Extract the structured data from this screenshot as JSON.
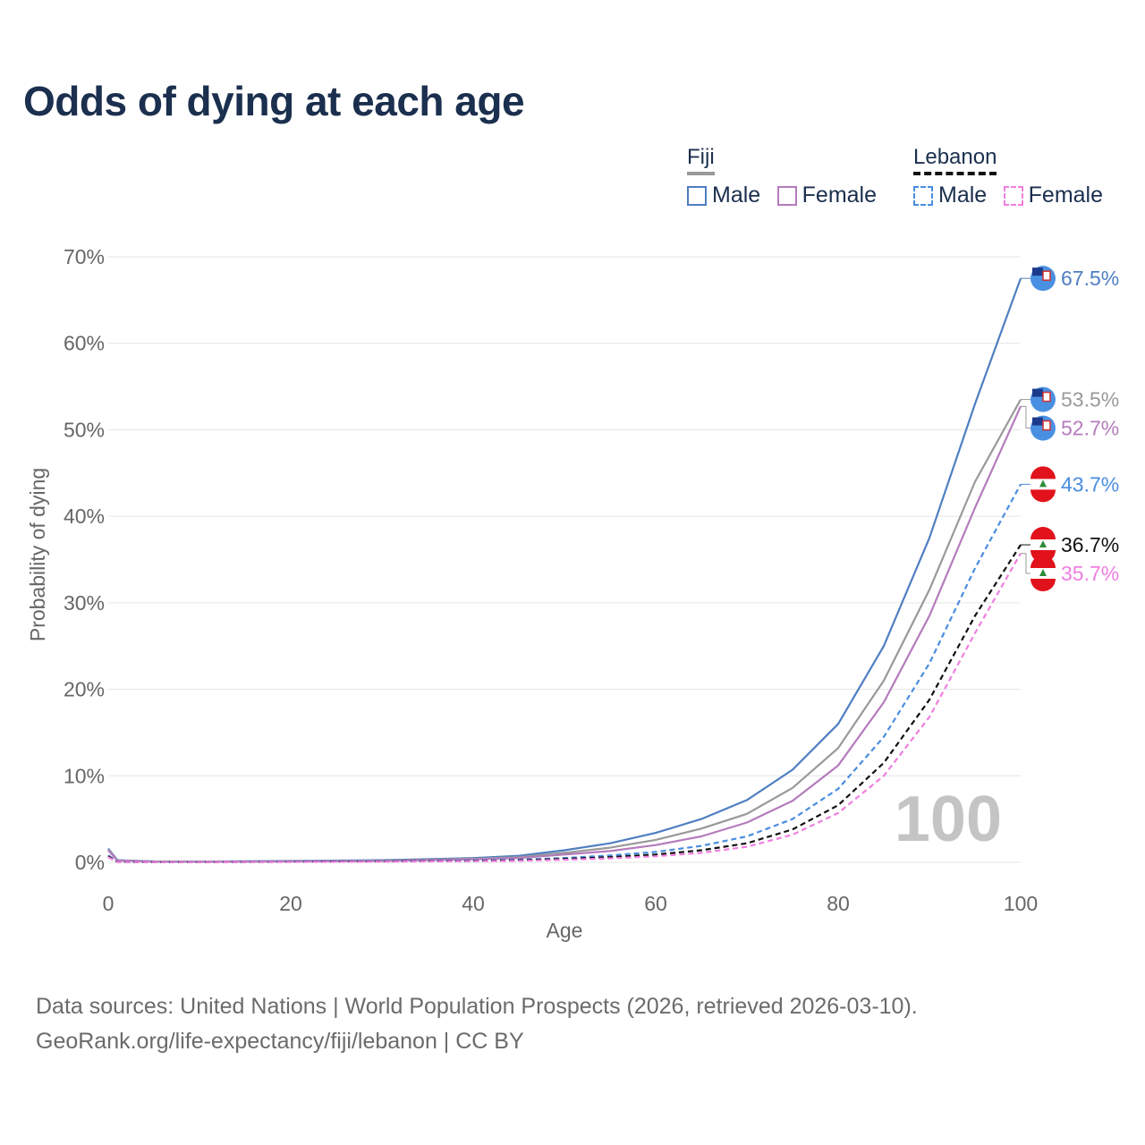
{
  "title": "Odds of dying at each age",
  "legend": {
    "groups": [
      {
        "name": "Fiji",
        "line_color": "#999999",
        "dashed": false,
        "items": [
          {
            "label": "Male",
            "color": "#4f7ec2",
            "dashed": false
          },
          {
            "label": "Female",
            "color": "#b57bbd",
            "dashed": false
          }
        ]
      },
      {
        "name": "Lebanon",
        "line_color": "#111111",
        "dashed": true,
        "items": [
          {
            "label": "Male",
            "color": "#4a8de0",
            "dashed": true
          },
          {
            "label": "Female",
            "color": "#f07ee0",
            "dashed": true
          }
        ]
      }
    ]
  },
  "chart_data": {
    "type": "line",
    "title": "Odds of dying at each age",
    "xlabel": "Age",
    "ylabel": "Probability of dying",
    "xlim": [
      0,
      100
    ],
    "ylim": [
      0,
      70
    ],
    "xticks": [
      0,
      20,
      40,
      60,
      80,
      100
    ],
    "yticks": [
      0,
      10,
      20,
      30,
      40,
      50,
      60,
      70
    ],
    "ytick_labels": [
      "0%",
      "10%",
      "20%",
      "30%",
      "40%",
      "50%",
      "60%",
      "70%"
    ],
    "watermark": "100",
    "x": [
      0,
      1,
      5,
      10,
      20,
      30,
      40,
      45,
      50,
      55,
      60,
      65,
      70,
      75,
      80,
      85,
      90,
      95,
      100
    ],
    "series": [
      {
        "name": "Fiji Male",
        "country": "Fiji",
        "sex": "Male",
        "color": "#4f7ec2",
        "dashed": false,
        "values": [
          1.6,
          0.25,
          0.1,
          0.08,
          0.15,
          0.25,
          0.5,
          0.75,
          1.4,
          2.2,
          3.4,
          5.0,
          7.2,
          10.7,
          16.0,
          25.0,
          37.5,
          53.0,
          67.5
        ],
        "end_label": "67.5%"
      },
      {
        "name": "Fiji total",
        "country": "Fiji",
        "sex": "All",
        "color": "#999999",
        "dashed": false,
        "values": [
          1.5,
          0.22,
          0.09,
          0.07,
          0.12,
          0.2,
          0.4,
          0.6,
          1.1,
          1.7,
          2.6,
          3.9,
          5.6,
          8.6,
          13.2,
          21.0,
          31.5,
          44.0,
          53.5
        ],
        "end_label": "53.5%"
      },
      {
        "name": "Fiji Female",
        "country": "Fiji",
        "sex": "Female",
        "color": "#b57bbd",
        "dashed": false,
        "values": [
          1.4,
          0.2,
          0.08,
          0.06,
          0.1,
          0.15,
          0.35,
          0.5,
          0.9,
          1.3,
          2.0,
          3.0,
          4.6,
          7.1,
          11.2,
          18.5,
          28.5,
          41.0,
          52.7
        ],
        "end_label": "52.7%"
      },
      {
        "name": "Lebanon Male",
        "country": "Lebanon",
        "sex": "Male",
        "color": "#4a8de0",
        "dashed": true,
        "values": [
          0.8,
          0.06,
          0.03,
          0.03,
          0.08,
          0.12,
          0.2,
          0.3,
          0.5,
          0.8,
          1.2,
          1.9,
          3.0,
          5.0,
          8.5,
          14.5,
          23.0,
          34.0,
          43.7
        ],
        "end_label": "43.7%"
      },
      {
        "name": "Lebanon total",
        "country": "Lebanon",
        "sex": "All",
        "color": "#111111",
        "dashed": true,
        "values": [
          0.7,
          0.05,
          0.02,
          0.02,
          0.06,
          0.1,
          0.16,
          0.24,
          0.4,
          0.6,
          0.9,
          1.4,
          2.2,
          3.8,
          6.6,
          11.5,
          18.8,
          28.5,
          36.7
        ],
        "end_label": "36.7%"
      },
      {
        "name": "Lebanon Female",
        "country": "Lebanon",
        "sex": "Female",
        "color": "#f07ee0",
        "dashed": true,
        "values": [
          0.6,
          0.04,
          0.02,
          0.02,
          0.04,
          0.07,
          0.12,
          0.18,
          0.3,
          0.45,
          0.7,
          1.1,
          1.8,
          3.2,
          5.7,
          10.0,
          16.8,
          26.5,
          35.7
        ],
        "end_label": "35.7%"
      }
    ]
  },
  "footer": {
    "line1": "Data sources: United Nations | World Population Prospects (2026, retrieved 2026-03-10).",
    "line2": "GeoRank.org/life-expectancy/fiji/lebanon | CC BY"
  }
}
